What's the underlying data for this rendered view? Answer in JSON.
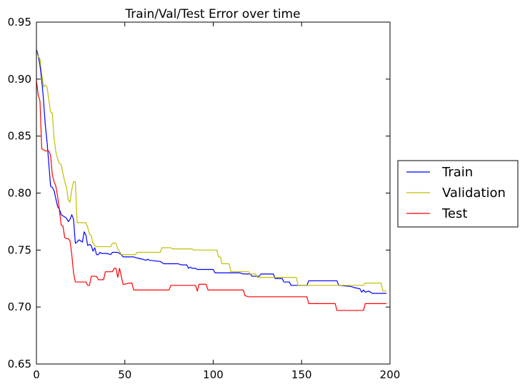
{
  "chart_data": {
    "type": "line",
    "title": "Train/Val/Test Error over time",
    "xlabel": "",
    "ylabel": "",
    "xlim": [
      0,
      200
    ],
    "ylim": [
      0.65,
      0.95
    ],
    "xticks": [
      0,
      50,
      100,
      150,
      200
    ],
    "yticks": [
      0.65,
      0.7,
      0.75,
      0.8,
      0.85,
      0.9,
      0.95
    ],
    "xtick_labels": [
      "0",
      "50",
      "100",
      "150",
      "200"
    ],
    "ytick_labels": [
      "0.65",
      "0.70",
      "0.75",
      "0.80",
      "0.85",
      "0.90",
      "0.95"
    ],
    "grid": false,
    "legend_position": "outside-right",
    "series": [
      {
        "name": "Train",
        "color": "#0000ff",
        "points": [
          [
            0,
            0.926
          ],
          [
            1,
            0.921
          ],
          [
            2,
            0.912
          ],
          [
            3,
            0.899
          ],
          [
            4,
            0.882
          ],
          [
            5,
            0.86
          ],
          [
            6,
            0.845
          ],
          [
            7,
            0.826
          ],
          [
            8,
            0.806
          ],
          [
            9,
            0.805
          ],
          [
            10,
            0.802
          ],
          [
            11,
            0.795
          ],
          [
            12,
            0.788
          ],
          [
            13,
            0.786
          ],
          [
            14,
            0.781
          ],
          [
            15,
            0.78
          ],
          [
            16,
            0.779
          ],
          [
            17,
            0.778
          ],
          [
            18,
            0.775
          ],
          [
            19,
            0.777
          ],
          [
            20,
            0.781
          ],
          [
            21,
            0.777
          ],
          [
            22,
            0.756
          ],
          [
            23,
            0.757
          ],
          [
            24,
            0.759
          ],
          [
            25,
            0.758
          ],
          [
            26,
            0.757
          ],
          [
            27,
            0.766
          ],
          [
            28,
            0.763
          ],
          [
            29,
            0.754
          ],
          [
            30,
            0.755
          ],
          [
            31,
            0.754
          ],
          [
            32,
            0.749
          ],
          [
            33,
            0.752
          ],
          [
            34,
            0.746
          ],
          [
            35,
            0.746
          ],
          [
            36,
            0.748
          ],
          [
            37,
            0.747
          ],
          [
            40,
            0.747
          ],
          [
            42,
            0.746
          ],
          [
            43,
            0.748
          ],
          [
            46,
            0.748
          ],
          [
            48,
            0.746
          ],
          [
            49,
            0.744
          ],
          [
            55,
            0.744
          ],
          [
            57,
            0.743
          ],
          [
            60,
            0.742
          ],
          [
            62,
            0.741
          ],
          [
            63,
            0.742
          ],
          [
            64,
            0.741
          ],
          [
            70,
            0.74
          ],
          [
            72,
            0.738
          ],
          [
            80,
            0.738
          ],
          [
            82,
            0.737
          ],
          [
            85,
            0.737
          ],
          [
            86,
            0.734
          ],
          [
            87,
            0.735
          ],
          [
            88,
            0.734
          ],
          [
            90,
            0.734
          ],
          [
            91,
            0.733
          ],
          [
            100,
            0.733
          ],
          [
            101,
            0.73
          ],
          [
            115,
            0.73
          ],
          [
            117,
            0.729
          ],
          [
            121,
            0.729
          ],
          [
            122,
            0.727
          ],
          [
            126,
            0.727
          ],
          [
            127,
            0.729
          ],
          [
            134,
            0.729
          ],
          [
            135,
            0.725
          ],
          [
            139,
            0.725
          ],
          [
            140,
            0.722
          ],
          [
            143,
            0.722
          ],
          [
            144,
            0.719
          ],
          [
            153,
            0.719
          ],
          [
            154,
            0.723
          ],
          [
            170,
            0.723
          ],
          [
            171,
            0.719
          ],
          [
            178,
            0.718
          ],
          [
            180,
            0.717
          ],
          [
            183,
            0.716
          ],
          [
            184,
            0.713
          ],
          [
            185,
            0.715
          ],
          [
            186,
            0.713
          ],
          [
            188,
            0.714
          ],
          [
            190,
            0.712
          ],
          [
            198,
            0.712
          ]
        ]
      },
      {
        "name": "Validation",
        "color": "#bfbf00",
        "points": [
          [
            0,
            0.924
          ],
          [
            1,
            0.92
          ],
          [
            2,
            0.918
          ],
          [
            3,
            0.905
          ],
          [
            4,
            0.893
          ],
          [
            5,
            0.895
          ],
          [
            6,
            0.893
          ],
          [
            7,
            0.882
          ],
          [
            8,
            0.871
          ],
          [
            9,
            0.87
          ],
          [
            10,
            0.848
          ],
          [
            11,
            0.836
          ],
          [
            12,
            0.83
          ],
          [
            13,
            0.826
          ],
          [
            14,
            0.825
          ],
          [
            15,
            0.817
          ],
          [
            16,
            0.81
          ],
          [
            17,
            0.805
          ],
          [
            18,
            0.794
          ],
          [
            19,
            0.792
          ],
          [
            20,
            0.803
          ],
          [
            21,
            0.81
          ],
          [
            22,
            0.81
          ],
          [
            23,
            0.774
          ],
          [
            28,
            0.774
          ],
          [
            29,
            0.77
          ],
          [
            30,
            0.764
          ],
          [
            31,
            0.763
          ],
          [
            32,
            0.756
          ],
          [
            33,
            0.754
          ],
          [
            34,
            0.753
          ],
          [
            42,
            0.753
          ],
          [
            43,
            0.756
          ],
          [
            45,
            0.756
          ],
          [
            46,
            0.751
          ],
          [
            47,
            0.749
          ],
          [
            48,
            0.746
          ],
          [
            56,
            0.746
          ],
          [
            57,
            0.748
          ],
          [
            70,
            0.748
          ],
          [
            71,
            0.752
          ],
          [
            76,
            0.752
          ],
          [
            77,
            0.751
          ],
          [
            88,
            0.751
          ],
          [
            89,
            0.75
          ],
          [
            102,
            0.75
          ],
          [
            103,
            0.744
          ],
          [
            104,
            0.744
          ],
          [
            105,
            0.738
          ],
          [
            109,
            0.738
          ],
          [
            110,
            0.731
          ],
          [
            120,
            0.731
          ],
          [
            121,
            0.729
          ],
          [
            124,
            0.729
          ],
          [
            125,
            0.726
          ],
          [
            147,
            0.726
          ],
          [
            148,
            0.719
          ],
          [
            185,
            0.719
          ],
          [
            186,
            0.721
          ],
          [
            195,
            0.721
          ],
          [
            196,
            0.714
          ],
          [
            198,
            0.714
          ]
        ]
      },
      {
        "name": "Test",
        "color": "#ff0000",
        "points": [
          [
            0,
            0.899
          ],
          [
            1,
            0.886
          ],
          [
            2,
            0.881
          ],
          [
            3,
            0.839
          ],
          [
            4,
            0.838
          ],
          [
            5,
            0.837
          ],
          [
            7,
            0.837
          ],
          [
            8,
            0.833
          ],
          [
            9,
            0.816
          ],
          [
            10,
            0.81
          ],
          [
            11,
            0.806
          ],
          [
            12,
            0.797
          ],
          [
            13,
            0.785
          ],
          [
            14,
            0.772
          ],
          [
            15,
            0.771
          ],
          [
            16,
            0.761
          ],
          [
            17,
            0.76
          ],
          [
            18,
            0.76
          ],
          [
            19,
            0.758
          ],
          [
            20,
            0.746
          ],
          [
            21,
            0.73
          ],
          [
            22,
            0.722
          ],
          [
            28,
            0.722
          ],
          [
            29,
            0.719
          ],
          [
            30,
            0.719
          ],
          [
            31,
            0.727
          ],
          [
            34,
            0.727
          ],
          [
            35,
            0.724
          ],
          [
            38,
            0.724
          ],
          [
            39,
            0.731
          ],
          [
            43,
            0.731
          ],
          [
            44,
            0.734
          ],
          [
            45,
            0.734
          ],
          [
            46,
            0.726
          ],
          [
            47,
            0.734
          ],
          [
            49,
            0.72
          ],
          [
            50,
            0.72
          ],
          [
            52,
            0.721
          ],
          [
            54,
            0.721
          ],
          [
            55,
            0.715
          ],
          [
            75,
            0.715
          ],
          [
            76,
            0.719
          ],
          [
            90,
            0.719
          ],
          [
            91,
            0.714
          ],
          [
            92,
            0.72
          ],
          [
            96,
            0.72
          ],
          [
            97,
            0.715
          ],
          [
            117,
            0.715
          ],
          [
            118,
            0.71
          ],
          [
            120,
            0.709
          ],
          [
            153,
            0.709
          ],
          [
            154,
            0.703
          ],
          [
            169,
            0.703
          ],
          [
            170,
            0.697
          ],
          [
            185,
            0.697
          ],
          [
            186,
            0.703
          ],
          [
            198,
            0.703
          ]
        ]
      }
    ]
  }
}
